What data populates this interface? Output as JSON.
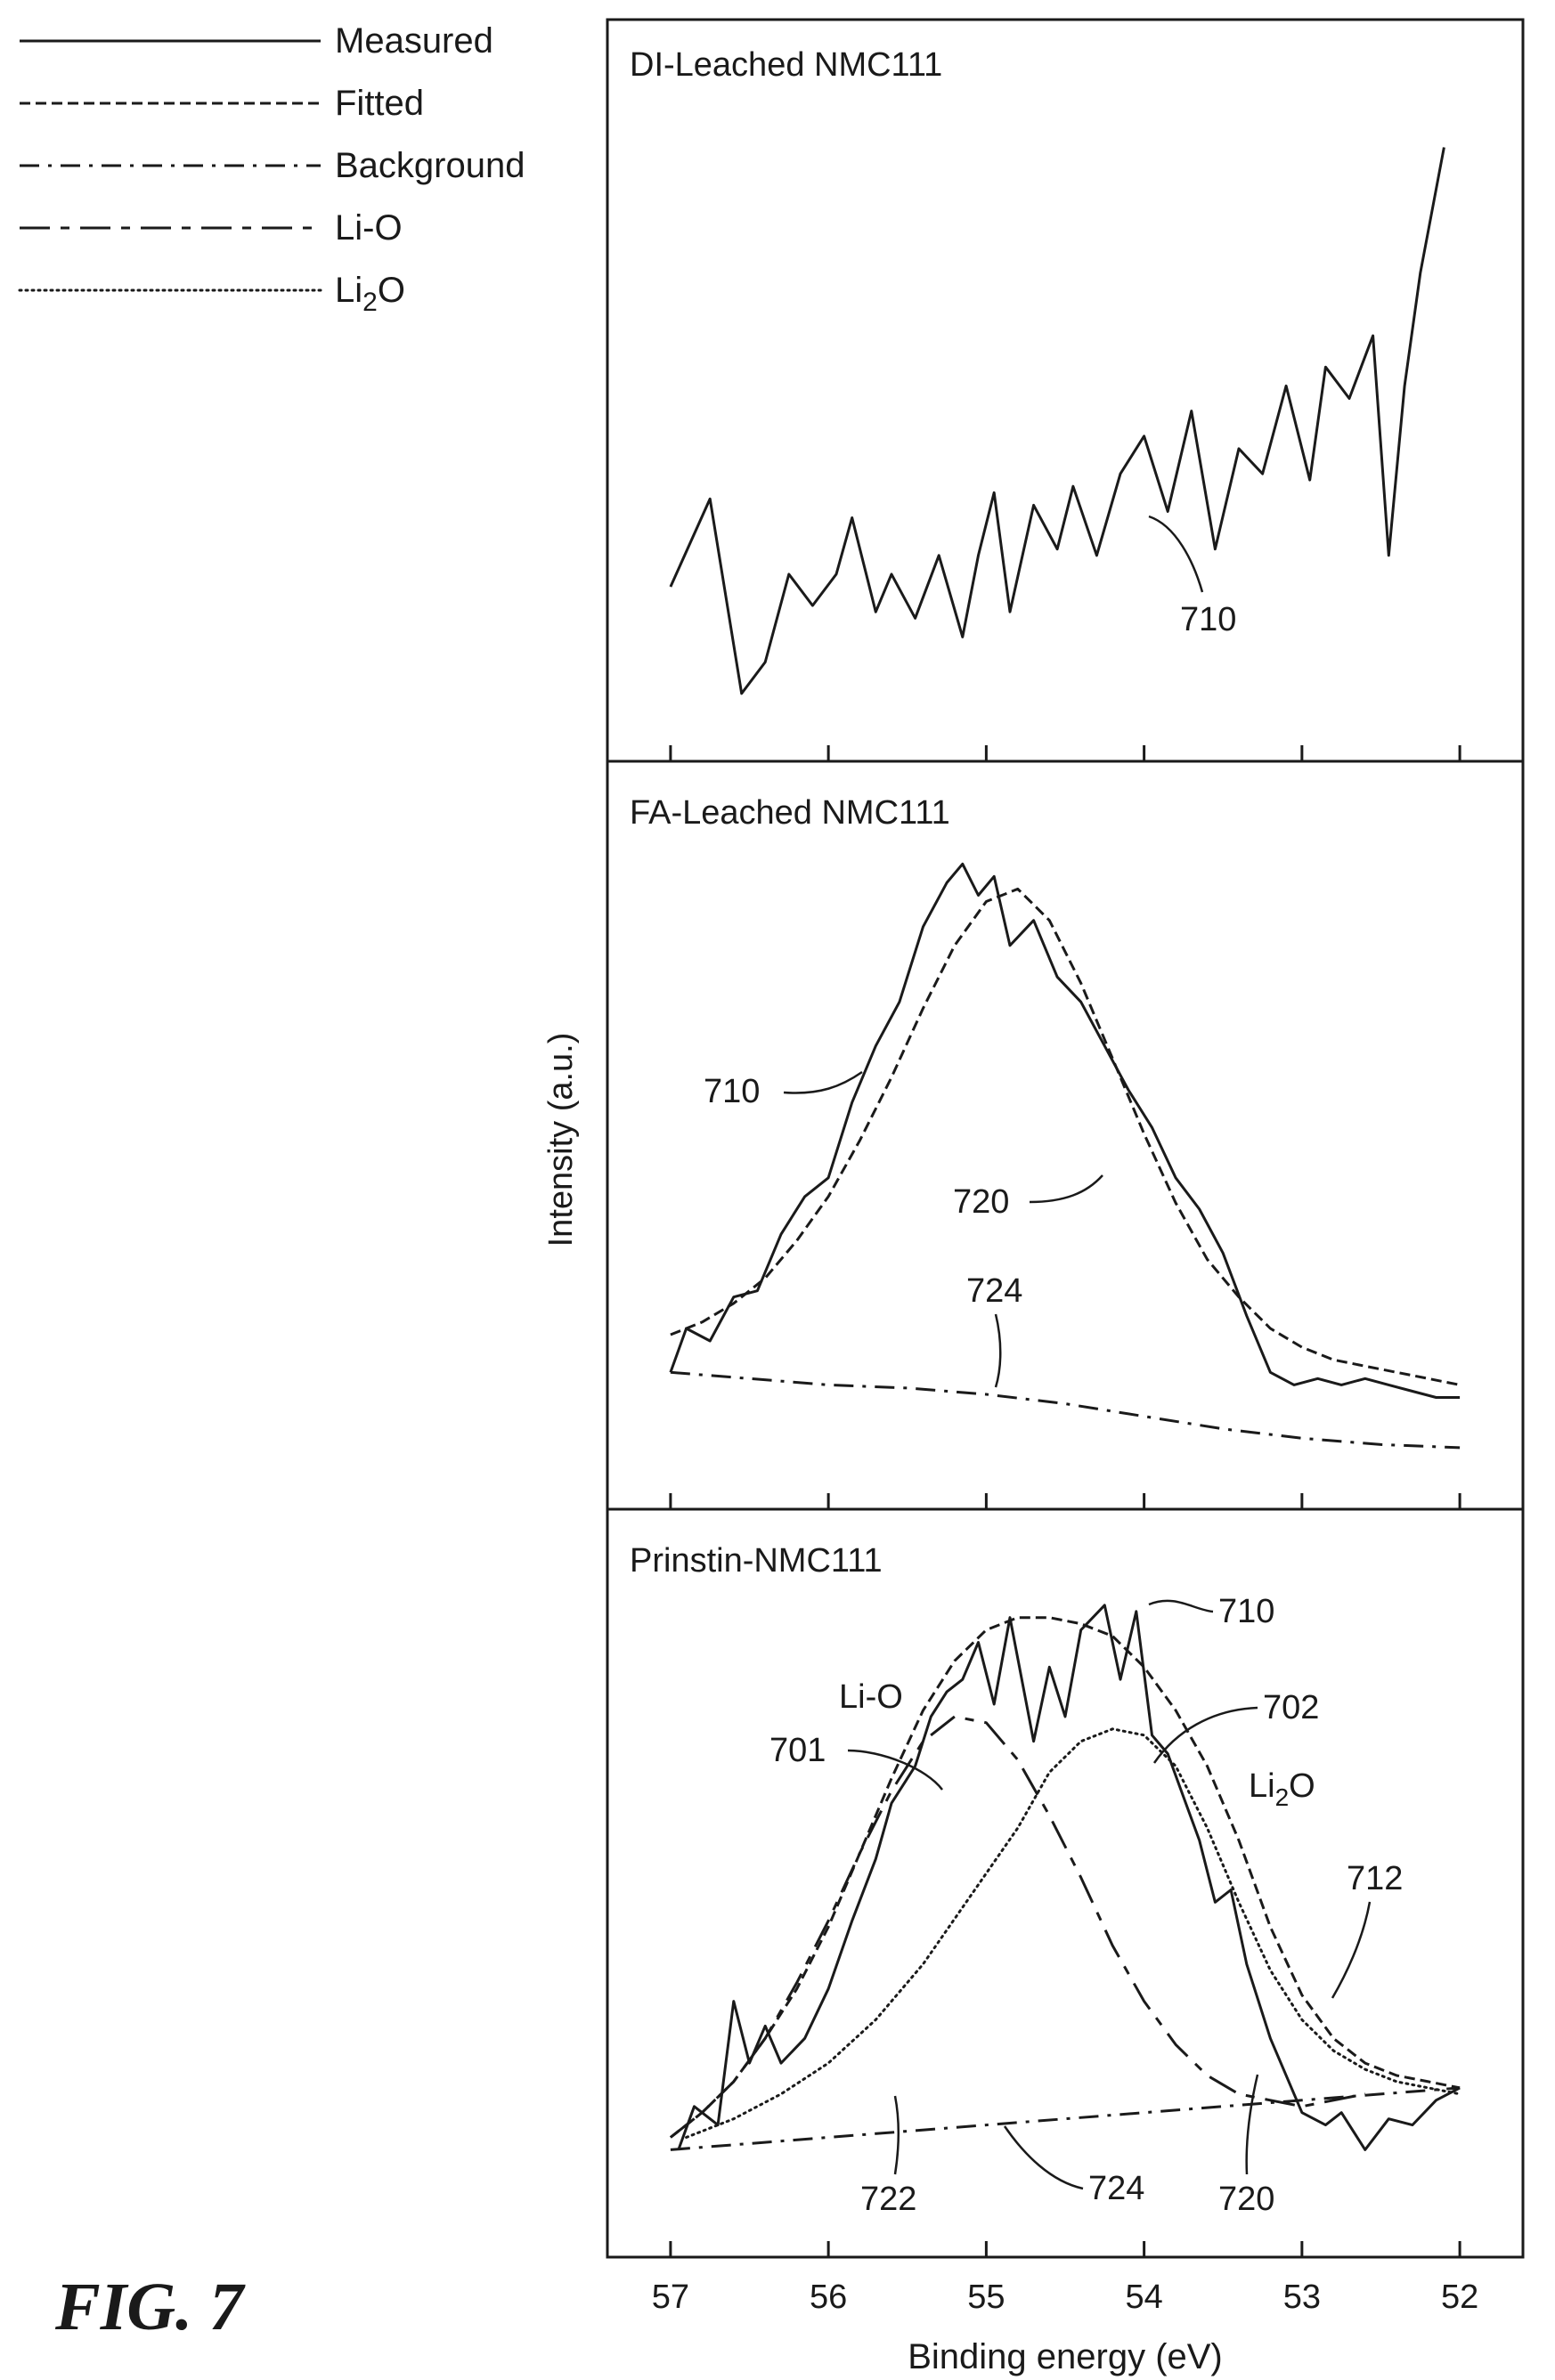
{
  "figure_label": "FIG. 7",
  "legend": [
    {
      "label": "Measured",
      "style": "solid"
    },
    {
      "label": "Fitted",
      "style": "dashed"
    },
    {
      "label": "Background",
      "style": "dashdot"
    },
    {
      "label": "Li-O",
      "style": "longdash"
    },
    {
      "label": "Li",
      "sub": "2",
      "label_end": "O",
      "style": "dotted"
    }
  ],
  "ylabel": "Intensity (a.u.)",
  "xlabel": "Binding energy (eV)",
  "chart_data": [
    {
      "type": "line",
      "title": "DI-Leached NMC111",
      "xlim": [
        57.4,
        51.6
      ],
      "ylim": [
        0,
        100
      ],
      "x_ticks": [
        57,
        56,
        55,
        54,
        53,
        52
      ],
      "series": [
        {
          "name": "Measured",
          "style": "solid",
          "x": [
            57.0,
            56.75,
            56.55,
            56.4,
            56.25,
            56.1,
            55.95,
            55.85,
            55.7,
            55.6,
            55.45,
            55.3,
            55.15,
            55.05,
            54.95,
            54.85,
            54.7,
            54.55,
            54.45,
            54.3,
            54.15,
            54.0,
            53.85,
            53.7,
            53.55,
            53.4,
            53.25,
            53.1,
            52.95,
            52.85,
            52.7,
            52.55,
            52.45,
            52.35,
            52.25,
            52.1
          ],
          "y": [
            20,
            34,
            3,
            8,
            22,
            17,
            22,
            31,
            16,
            22,
            15,
            25,
            12,
            25,
            35,
            16,
            33,
            26,
            36,
            25,
            38,
            44,
            32,
            48,
            26,
            42,
            38,
            52,
            37,
            55,
            50,
            60,
            25,
            52,
            70,
            90
          ]
        }
      ],
      "annotations": [
        {
          "text": "710"
        }
      ]
    },
    {
      "type": "line",
      "title": "FA-Leached NMC111",
      "xlim": [
        57.4,
        51.6
      ],
      "ylim": [
        0,
        100
      ],
      "x_ticks": [
        57,
        56,
        55,
        54,
        53,
        52
      ],
      "series": [
        {
          "name": "Measured",
          "style": "solid",
          "x": [
            57.0,
            56.9,
            56.75,
            56.6,
            56.45,
            56.3,
            56.15,
            56.0,
            55.85,
            55.7,
            55.55,
            55.4,
            55.25,
            55.15,
            55.05,
            54.95,
            54.85,
            54.7,
            54.55,
            54.4,
            54.25,
            54.1,
            53.95,
            53.8,
            53.65,
            53.5,
            53.35,
            53.2,
            53.05,
            52.9,
            52.75,
            52.6,
            52.45,
            52.3,
            52.15,
            52.0
          ],
          "y": [
            14,
            21,
            19,
            26,
            27,
            36,
            42,
            45,
            57,
            66,
            73,
            85,
            92,
            95,
            90,
            93,
            82,
            86,
            77,
            73,
            66,
            59,
            53,
            45,
            40,
            33,
            23,
            14,
            12,
            13,
            12,
            13,
            12,
            11,
            10,
            10
          ]
        },
        {
          "name": "Fitted",
          "style": "dashed",
          "x": [
            57.0,
            56.8,
            56.6,
            56.4,
            56.2,
            56.0,
            55.8,
            55.6,
            55.4,
            55.2,
            55.0,
            54.8,
            54.6,
            54.4,
            54.2,
            54.0,
            53.8,
            53.6,
            53.4,
            53.2,
            53.0,
            52.8,
            52.6,
            52.4,
            52.2,
            52.0
          ],
          "y": [
            20,
            22,
            25,
            29,
            35,
            42,
            51,
            61,
            72,
            82,
            89,
            91,
            86,
            76,
            64,
            52,
            41,
            32,
            26,
            21,
            18,
            16,
            15,
            14,
            13,
            12
          ]
        },
        {
          "name": "Background",
          "style": "dashdot",
          "x": [
            57.0,
            56.5,
            56.0,
            55.5,
            55.0,
            54.5,
            54.0,
            53.5,
            53.0,
            52.5,
            52.0
          ],
          "y": [
            14,
            13,
            12,
            11.5,
            10.5,
            9,
            7,
            5,
            3.5,
            2.5,
            2
          ]
        }
      ],
      "annotations": [
        {
          "text": "710"
        },
        {
          "text": "720"
        },
        {
          "text": "724"
        }
      ]
    },
    {
      "type": "line",
      "title": "Prinstin-NMC111",
      "xlim": [
        57.4,
        51.6
      ],
      "ylim": [
        0,
        100
      ],
      "x_ticks": [
        57,
        56,
        55,
        54,
        53,
        52
      ],
      "series": [
        {
          "name": "Measured",
          "style": "solid",
          "x": [
            56.95,
            56.85,
            56.7,
            56.6,
            56.5,
            56.4,
            56.3,
            56.15,
            56.0,
            55.85,
            55.7,
            55.6,
            55.45,
            55.35,
            55.25,
            55.15,
            55.05,
            54.95,
            54.85,
            54.7,
            54.6,
            54.5,
            54.4,
            54.25,
            54.15,
            54.05,
            53.95,
            53.85,
            53.75,
            53.65,
            53.55,
            53.45,
            53.35,
            53.2,
            53.0,
            52.85,
            52.75,
            52.6,
            52.45,
            52.3,
            52.15,
            52.0
          ],
          "y": [
            8,
            15,
            12,
            32,
            22,
            28,
            22,
            26,
            34,
            45,
            55,
            64,
            70,
            78,
            82,
            84,
            90,
            80,
            94,
            74,
            86,
            78,
            92,
            96,
            84,
            95,
            75,
            72,
            65,
            58,
            48,
            50,
            38,
            26,
            14,
            12,
            14,
            8,
            13,
            12,
            16,
            18
          ]
        },
        {
          "name": "Fitted",
          "style": "dashed",
          "x": [
            57.0,
            56.8,
            56.6,
            56.4,
            56.2,
            56.0,
            55.8,
            55.6,
            55.4,
            55.2,
            55.0,
            54.8,
            54.6,
            54.4,
            54.2,
            54.0,
            53.8,
            53.6,
            53.4,
            53.2,
            53.0,
            52.8,
            52.6,
            52.4,
            52.2,
            52.0
          ],
          "y": [
            10,
            14,
            19,
            26,
            34,
            44,
            56,
            68,
            79,
            87,
            92,
            94,
            94,
            93,
            91,
            86,
            79,
            70,
            58,
            44,
            33,
            26,
            22,
            20,
            19,
            18
          ]
        },
        {
          "name": "Background",
          "style": "dashdot",
          "x": [
            57.0,
            56.0,
            55.0,
            54.0,
            53.0,
            52.0
          ],
          "y": [
            8,
            10,
            12,
            14,
            16,
            18
          ]
        },
        {
          "name": "Li-O",
          "style": "longdash",
          "x": [
            57.0,
            56.8,
            56.6,
            56.4,
            56.2,
            56.0,
            55.8,
            55.6,
            55.4,
            55.2,
            55.0,
            54.8,
            54.6,
            54.4,
            54.2,
            54.0,
            53.8,
            53.6,
            53.4,
            53.2,
            53.0,
            52.8,
            52.6
          ],
          "y": [
            10,
            14,
            19,
            26,
            35,
            45,
            56,
            66,
            74,
            78,
            77,
            71,
            62,
            52,
            41,
            32,
            25,
            20,
            17,
            16,
            15,
            16,
            17
          ]
        },
        {
          "name": "Li2O",
          "style": "dotted",
          "x": [
            56.9,
            56.6,
            56.3,
            56.0,
            55.7,
            55.4,
            55.1,
            54.8,
            54.6,
            54.4,
            54.2,
            54.0,
            53.8,
            53.6,
            53.4,
            53.2,
            53.0,
            52.8,
            52.6,
            52.4,
            52.2,
            52.0
          ],
          "y": [
            10,
            13,
            17,
            22,
            29,
            38,
            49,
            60,
            69,
            74,
            76,
            75,
            70,
            60,
            48,
            37,
            29,
            24,
            21,
            19,
            18,
            17
          ]
        }
      ],
      "annotations": [
        {
          "text": "710"
        },
        {
          "text": "Li-O"
        },
        {
          "text": "701"
        },
        {
          "text": "702"
        },
        {
          "text": "Li",
          "sub": "2",
          "text_end": "O"
        },
        {
          "text": "712"
        },
        {
          "text": "720"
        },
        {
          "text": "722"
        },
        {
          "text": "724"
        }
      ]
    }
  ]
}
